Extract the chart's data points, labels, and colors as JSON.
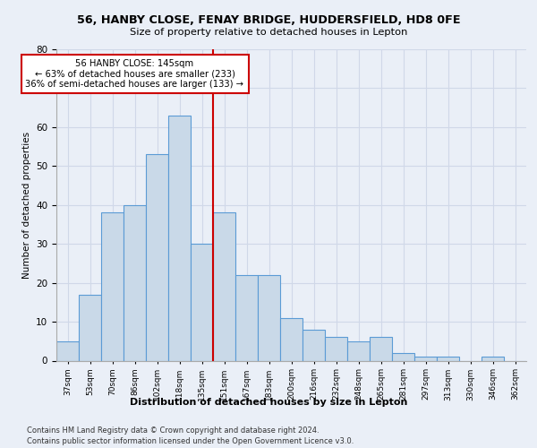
{
  "title1": "56, HANBY CLOSE, FENAY BRIDGE, HUDDERSFIELD, HD8 0FE",
  "title2": "Size of property relative to detached houses in Lepton",
  "xlabel": "Distribution of detached houses by size in Lepton",
  "ylabel": "Number of detached properties",
  "categories": [
    "37sqm",
    "53sqm",
    "70sqm",
    "86sqm",
    "102sqm",
    "118sqm",
    "135sqm",
    "151sqm",
    "167sqm",
    "183sqm",
    "200sqm",
    "216sqm",
    "232sqm",
    "248sqm",
    "265sqm",
    "281sqm",
    "297sqm",
    "313sqm",
    "330sqm",
    "346sqm",
    "362sqm"
  ],
  "values": [
    5,
    17,
    38,
    40,
    53,
    63,
    30,
    38,
    22,
    22,
    11,
    8,
    6,
    5,
    6,
    2,
    1,
    1,
    0,
    1,
    0
  ],
  "bar_color": "#c9d9e8",
  "bar_edge_color": "#5b9bd5",
  "annotation_line1": "56 HANBY CLOSE: 145sqm",
  "annotation_line2": "← 63% of detached houses are smaller (233)",
  "annotation_line3": "36% of semi-detached houses are larger (133) →",
  "vline_color": "#cc0000",
  "vline_x_index": 6.5,
  "annotation_box_color": "#ffffff",
  "annotation_box_edge": "#cc0000",
  "grid_color": "#d0d8e8",
  "ylim": [
    0,
    80
  ],
  "yticks": [
    0,
    10,
    20,
    30,
    40,
    50,
    60,
    70,
    80
  ],
  "footer1": "Contains HM Land Registry data © Crown copyright and database right 2024.",
  "footer2": "Contains public sector information licensed under the Open Government Licence v3.0.",
  "background_color": "#eaeff7",
  "plot_background": "#eaeff7"
}
